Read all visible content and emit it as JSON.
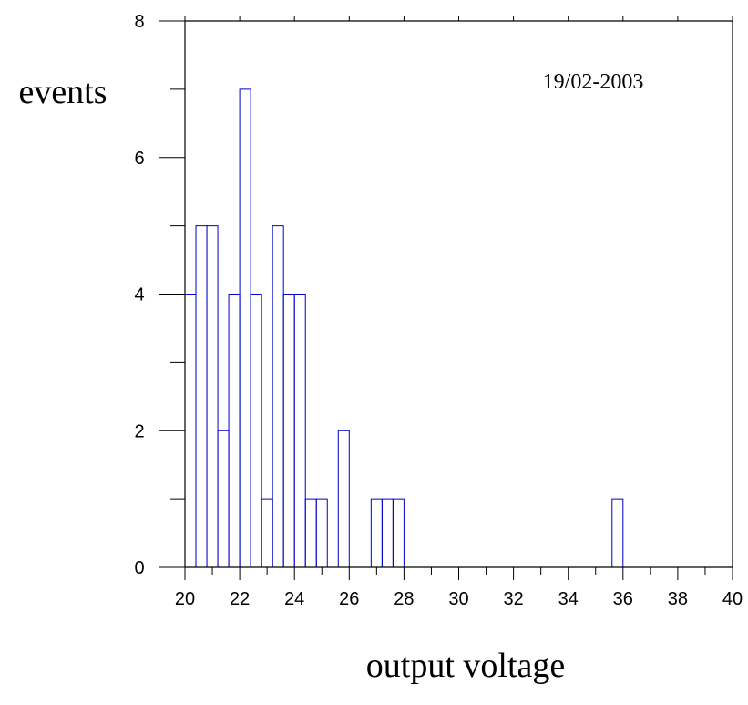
{
  "chart_data": {
    "type": "bar",
    "title": "",
    "annotation": "19/02-2003",
    "xlabel": "output voltage",
    "ylabel": "events",
    "xlim": [
      20,
      40
    ],
    "ylim": [
      0,
      8
    ],
    "bin_width": 0.4,
    "x_ticks": [
      "20",
      "22",
      "24",
      "26",
      "28",
      "30",
      "32",
      "34",
      "36",
      "38",
      "40"
    ],
    "y_ticks": [
      "0",
      "2",
      "4",
      "6",
      "8"
    ],
    "bins": [
      {
        "x": 20.0,
        "value": 4
      },
      {
        "x": 20.4,
        "value": 5
      },
      {
        "x": 20.8,
        "value": 5
      },
      {
        "x": 21.2,
        "value": 2
      },
      {
        "x": 21.6,
        "value": 4
      },
      {
        "x": 22.0,
        "value": 7
      },
      {
        "x": 22.4,
        "value": 4
      },
      {
        "x": 22.8,
        "value": 1
      },
      {
        "x": 23.2,
        "value": 5
      },
      {
        "x": 23.6,
        "value": 4
      },
      {
        "x": 24.0,
        "value": 4
      },
      {
        "x": 24.4,
        "value": 1
      },
      {
        "x": 24.8,
        "value": 1
      },
      {
        "x": 25.6,
        "value": 2
      },
      {
        "x": 26.8,
        "value": 1
      },
      {
        "x": 27.2,
        "value": 1
      },
      {
        "x": 27.6,
        "value": 1
      },
      {
        "x": 35.6,
        "value": 1
      }
    ],
    "grid": false,
    "bar_color": "#0000cc",
    "axis_color": "#000000"
  }
}
